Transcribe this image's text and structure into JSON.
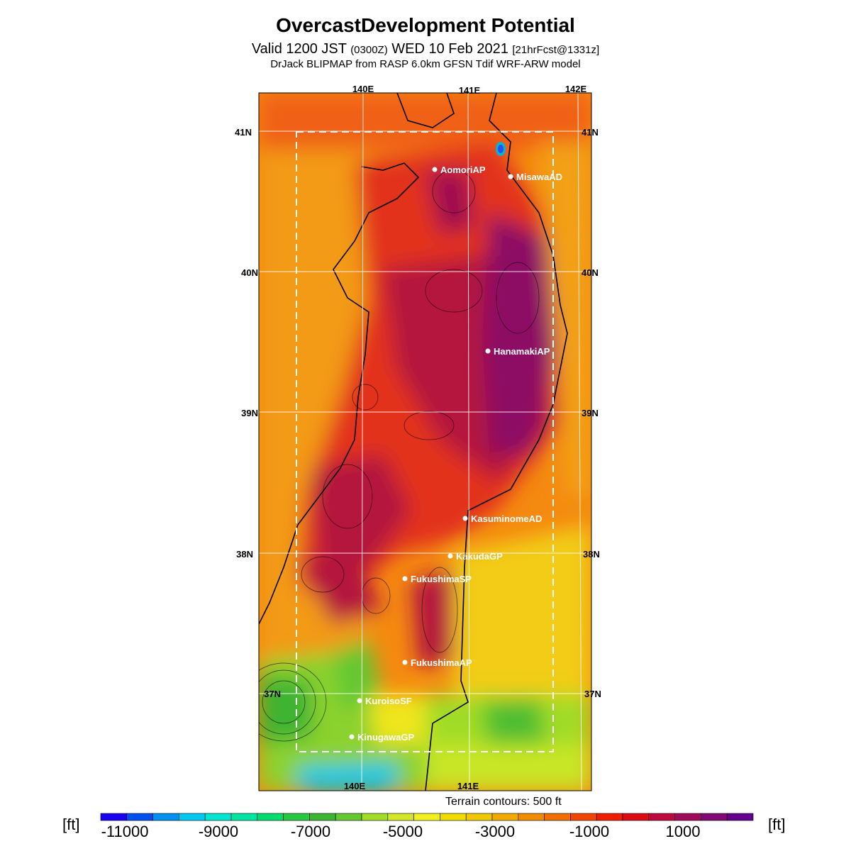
{
  "header": {
    "title": "OvercastDevelopment Potential",
    "valid_prefix": "Valid 1200 JST",
    "valid_utc": "(0300Z)",
    "valid_date": "WED 10 Feb 2021",
    "forecast_tag": "[21hrFcst@1331z]",
    "model_line": "DrJack BLIPMAP from RASP 6.0km GFSN Tdif WRF-ARW model"
  },
  "map": {
    "lon_labels": [
      "140E",
      "141E",
      "142E"
    ],
    "lat_labels": [
      "41N",
      "40N",
      "39N",
      "38N",
      "37N"
    ],
    "sites": [
      {
        "name": "AomoriAP"
      },
      {
        "name": "MisawaAD"
      },
      {
        "name": "HanamakiAP"
      },
      {
        "name": "KasuminomeAD"
      },
      {
        "name": "KakudaGP"
      },
      {
        "name": "FukushimaSP"
      },
      {
        "name": "FukushimaAP"
      },
      {
        "name": "KuroisoSF"
      },
      {
        "name": "KinugawaGP"
      }
    ]
  },
  "terrain_note": "Terrain contours: 500 ft",
  "colorbar": {
    "unit": "[ft]",
    "tick_labels": [
      "-11000",
      "-9000",
      "-7000",
      "-5000",
      "-3000",
      "-1000",
      "1000"
    ],
    "colors": [
      "#1a00f0",
      "#0050f0",
      "#0090f0",
      "#00c8f0",
      "#00e6d2",
      "#00e6a0",
      "#00dc6e",
      "#28c846",
      "#3cb432",
      "#64c832",
      "#a0dc28",
      "#d2e628",
      "#f0f01e",
      "#f0dc00",
      "#f0c800",
      "#f0aa00",
      "#f08c00",
      "#f06e00",
      "#f04600",
      "#f01e00",
      "#dc0a14",
      "#be0a3c",
      "#a00a5a",
      "#820a78",
      "#64008c"
    ]
  }
}
